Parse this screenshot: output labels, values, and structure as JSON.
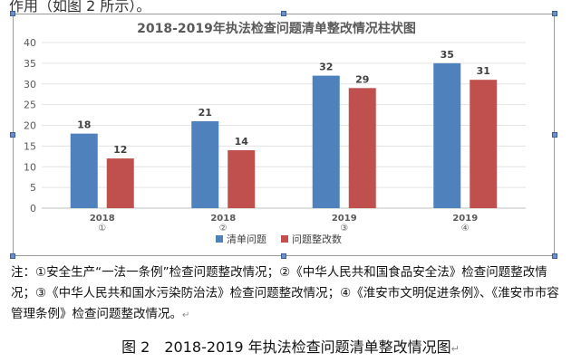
{
  "document": {
    "top_text": "作用（如图 2 所示）。",
    "note": "注：①安全生产“一法一条例”检查问题整改情况；②《中华人民共和国食品安全法》检查问题整改情况；③《中华人民共和国水污染防治法》检查问题整改情况；④《淮安市文明促进条例》、《淮安市市容管理条例》检查问题整改情况。",
    "paragraph_mark": "↵",
    "caption": "图 2　2018-2019 年执法检查问题清单整改情况图"
  },
  "chart_data": {
    "type": "bar",
    "title": "2018-2019年执法检查问题清单整改情况柱状图",
    "categories": [
      {
        "year": "2018",
        "index": "①"
      },
      {
        "year": "2018",
        "index": "②"
      },
      {
        "year": "2019",
        "index": "③"
      },
      {
        "year": "2019",
        "index": "④"
      }
    ],
    "series": [
      {
        "name": "清单问题",
        "color": "#4f81bd",
        "values": [
          18,
          21,
          32,
          35
        ]
      },
      {
        "name": "问题整改数",
        "color": "#c0504d",
        "values": [
          12,
          14,
          29,
          31
        ]
      }
    ],
    "ylim": [
      0,
      40
    ],
    "yticks": [
      0,
      5,
      10,
      15,
      20,
      25,
      30,
      35,
      40
    ],
    "grid": true,
    "legend": "bottom"
  }
}
